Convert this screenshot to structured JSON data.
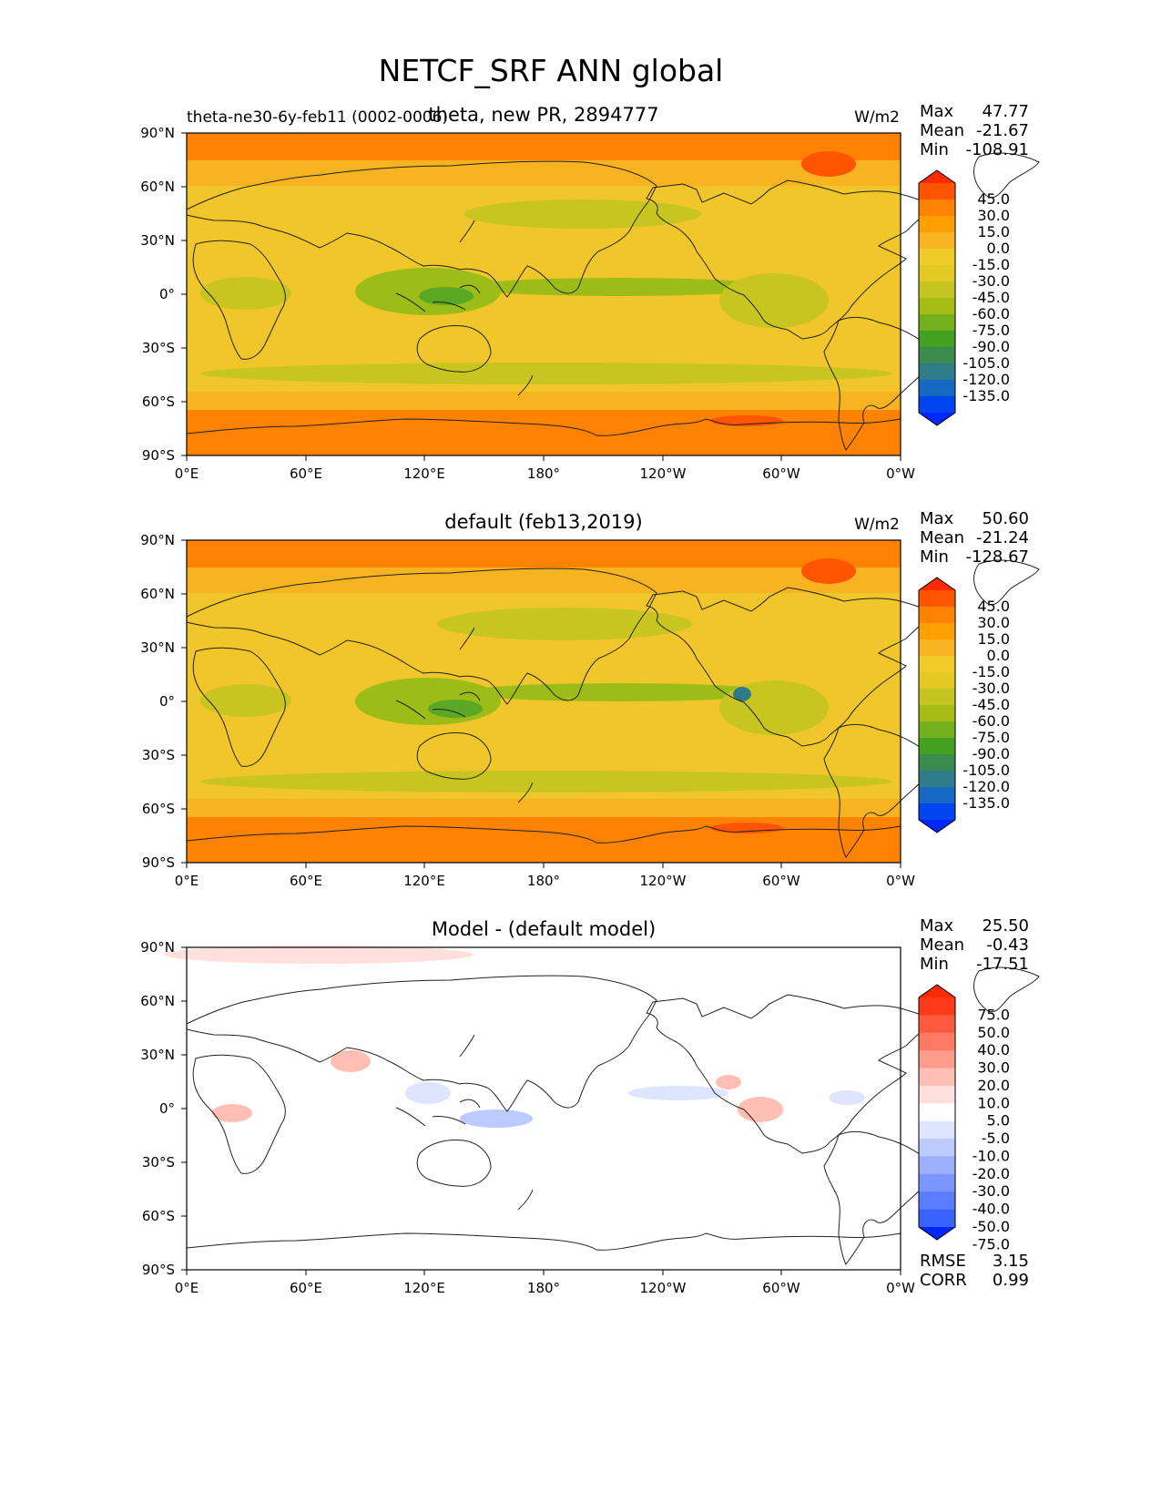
{
  "figure_title": "NETCF_SRF ANN global",
  "colors": {
    "background": "#ffffff",
    "frame": "#000000",
    "coastline": "#222222"
  },
  "chart_data": [
    {
      "type": "heatmap",
      "title": "theta, new PR, 2894777",
      "left_title": "theta-ne30-6y-feb11 (0002-0006)",
      "units": "W/m2",
      "stats": [
        {
          "label": "Max",
          "value": "47.77"
        },
        {
          "label": "Mean",
          "value": "-21.67"
        },
        {
          "label": "Min",
          "value": "-108.91"
        }
      ],
      "x_ticks": [
        "0°E",
        "60°E",
        "120°E",
        "180°",
        "120°W",
        "60°W",
        "0°W"
      ],
      "y_ticks": [
        "90°N",
        "60°N",
        "30°N",
        "0°",
        "30°S",
        "60°S",
        "90°S"
      ],
      "colorbar_levels": [
        "45.0",
        "30.0",
        "15.0",
        "0.0",
        "-15.0",
        "-30.0",
        "-45.0",
        "-60.0",
        "-75.0",
        "-90.0",
        "-105.0",
        "-120.0",
        "-135.0"
      ],
      "colorbar_colors": [
        "#ff2a00",
        "#ff5500",
        "#ff8200",
        "#ffa000",
        "#f8b420",
        "#f0cc2a",
        "#e4c824",
        "#c4c520",
        "#a6bd18",
        "#74b01e",
        "#44a020",
        "#3b8a4e",
        "#2e7c88",
        "#1668c0",
        "#0046f0",
        "#0027ff"
      ],
      "field_colors": {
        "polar": "#ff8200",
        "midlat": "#f0c62a",
        "subtrop": "#f2b21c",
        "tropics": "#c8c520",
        "itcz": "#9cbc18",
        "deep": "#5aa824"
      }
    },
    {
      "type": "heatmap",
      "title": "default (feb13,2019)",
      "units": "W/m2",
      "stats": [
        {
          "label": "Max",
          "value": "50.60"
        },
        {
          "label": "Mean",
          "value": "-21.24"
        },
        {
          "label": "Min",
          "value": "-128.67"
        }
      ],
      "x_ticks": [
        "0°E",
        "60°E",
        "120°E",
        "180°",
        "120°W",
        "60°W",
        "0°W"
      ],
      "y_ticks": [
        "90°N",
        "60°N",
        "30°N",
        "0°",
        "30°S",
        "60°S",
        "90°S"
      ],
      "colorbar_levels": [
        "45.0",
        "30.0",
        "15.0",
        "0.0",
        "-15.0",
        "-30.0",
        "-45.0",
        "-60.0",
        "-75.0",
        "-90.0",
        "-105.0",
        "-120.0",
        "-135.0"
      ],
      "colorbar_colors": [
        "#ff2a00",
        "#ff5500",
        "#ff8200",
        "#ffa000",
        "#f8b420",
        "#f0cc2a",
        "#e4c824",
        "#c4c520",
        "#a6bd18",
        "#74b01e",
        "#44a020",
        "#3b8a4e",
        "#2e7c88",
        "#1668c0",
        "#0046f0",
        "#0027ff"
      ],
      "field_colors": {
        "polar": "#ff8200",
        "midlat": "#f0c62a",
        "subtrop": "#f2b21c",
        "tropics": "#c8c520",
        "itcz": "#9cbc18",
        "deep": "#5aa824"
      }
    },
    {
      "type": "heatmap",
      "title": "Model - (default model)",
      "stats": [
        {
          "label": "Max",
          "value": "25.50"
        },
        {
          "label": "Mean",
          "value": "-0.43"
        },
        {
          "label": "Min",
          "value": "-17.51"
        }
      ],
      "extra_stats": [
        {
          "label": "RMSE",
          "value": "3.15"
        },
        {
          "label": "CORR",
          "value": "0.99"
        }
      ],
      "x_ticks": [
        "0°E",
        "60°E",
        "120°E",
        "180°",
        "120°W",
        "60°W",
        "0°W"
      ],
      "y_ticks": [
        "90°N",
        "60°N",
        "30°N",
        "0°",
        "30°S",
        "60°S",
        "90°S"
      ],
      "colorbar_levels": [
        "75.0",
        "50.0",
        "40.0",
        "30.0",
        "20.0",
        "10.0",
        "5.0",
        "-5.0",
        "-10.0",
        "-20.0",
        "-30.0",
        "-40.0",
        "-50.0",
        "-75.0"
      ],
      "colorbar_colors": [
        "#ff2a00",
        "#ff3a18",
        "#ff5a40",
        "#ff7a64",
        "#ff9c8c",
        "#ffbfb4",
        "#ffe0dc",
        "#ffffff",
        "#dde5ff",
        "#bccbff",
        "#9cb0ff",
        "#7c96ff",
        "#5a7cff",
        "#3a62ff",
        "#0027ff"
      ],
      "field_colors": {
        "base": "#ffffff"
      }
    }
  ]
}
